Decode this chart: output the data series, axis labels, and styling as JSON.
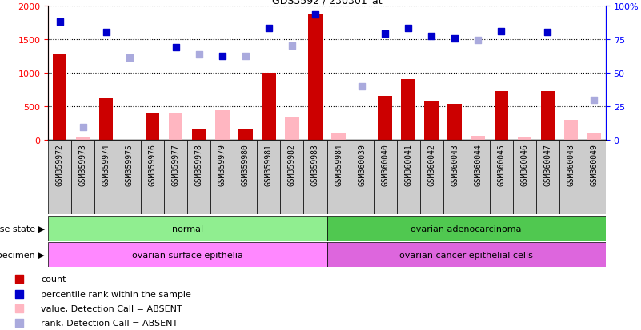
{
  "title": "GDS3592 / 230301_at",
  "samples": [
    "GSM359972",
    "GSM359973",
    "GSM359974",
    "GSM359975",
    "GSM359976",
    "GSM359977",
    "GSM359978",
    "GSM359979",
    "GSM359980",
    "GSM359981",
    "GSM359982",
    "GSM359983",
    "GSM359984",
    "GSM360039",
    "GSM360040",
    "GSM360041",
    "GSM360042",
    "GSM360043",
    "GSM360044",
    "GSM360045",
    "GSM360046",
    "GSM360047",
    "GSM360048",
    "GSM360049"
  ],
  "count_present": [
    1280,
    0,
    620,
    0,
    400,
    0,
    170,
    0,
    170,
    1000,
    0,
    1890,
    0,
    0,
    660,
    900,
    570,
    540,
    0,
    730,
    0,
    730,
    0,
    0
  ],
  "count_absent": [
    0,
    30,
    0,
    0,
    0,
    405,
    0,
    440,
    0,
    0,
    330,
    0,
    100,
    0,
    0,
    0,
    0,
    0,
    60,
    0,
    50,
    0,
    300,
    90
  ],
  "rank_present": [
    1760,
    0,
    1615,
    0,
    0,
    1380,
    0,
    1250,
    0,
    1675,
    0,
    1870,
    0,
    0,
    1590,
    1665,
    1545,
    1510,
    0,
    1620,
    0,
    1605,
    0,
    0
  ],
  "rank_absent": [
    0,
    195,
    0,
    1225,
    0,
    0,
    1280,
    0,
    1250,
    0,
    1410,
    0,
    0,
    800,
    0,
    0,
    0,
    0,
    1490,
    0,
    0,
    0,
    0,
    600
  ],
  "disease_state_groups": [
    {
      "label": "normal",
      "start": 0,
      "end": 12,
      "color": "#90EE90"
    },
    {
      "label": "ovarian adenocarcinoma",
      "start": 12,
      "end": 24,
      "color": "#50C850"
    }
  ],
  "specimen_groups": [
    {
      "label": "ovarian surface epithelia",
      "start": 0,
      "end": 12,
      "color": "#FF88FF"
    },
    {
      "label": "ovarian cancer epithelial cells",
      "start": 12,
      "end": 24,
      "color": "#DD66DD"
    }
  ],
  "ylim_left": [
    0,
    2000
  ],
  "ylim_right": [
    0,
    100
  ],
  "yticks_left": [
    0,
    500,
    1000,
    1500,
    2000
  ],
  "yticks_right": [
    0,
    25,
    50,
    75,
    100
  ],
  "bar_color_present": "#CC0000",
  "bar_color_absent": "#FFB6C1",
  "rank_color_present": "#0000CC",
  "rank_color_absent": "#AAAADD",
  "col_bg_color": "#CCCCCC",
  "legend_items": [
    {
      "label": "count",
      "color": "#CC0000"
    },
    {
      "label": "percentile rank within the sample",
      "color": "#0000CC"
    },
    {
      "label": "value, Detection Call = ABSENT",
      "color": "#FFB6C1"
    },
    {
      "label": "rank, Detection Call = ABSENT",
      "color": "#AAAADD"
    }
  ],
  "right_ytick_labels": [
    "0",
    "25",
    "50",
    "75",
    "100%"
  ]
}
